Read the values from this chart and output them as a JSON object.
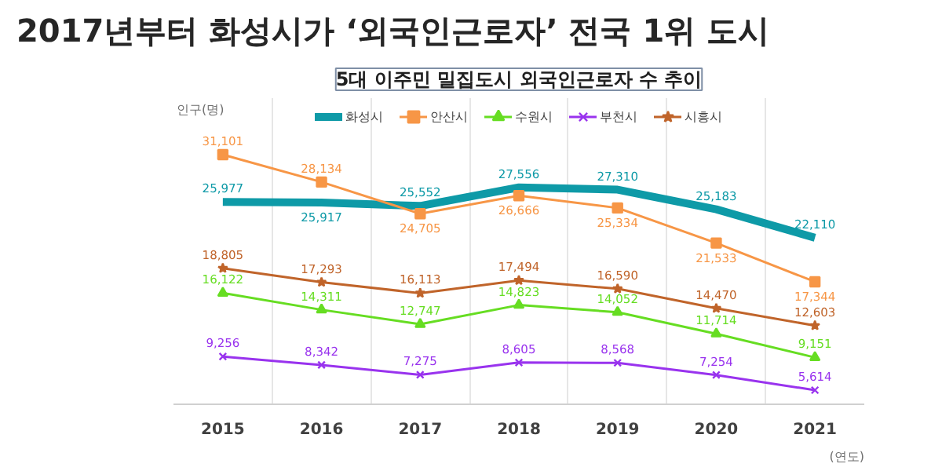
{
  "chart_data": {
    "type": "line",
    "title": "2017년부터 화성시가 ‘외국인근로자’ 전국 1위 도시",
    "subtitle": "5대 이주민 밀집도시 외국인근로자 수 추이",
    "ylabel": "인구(명)",
    "xlabel": "(연도)",
    "categories": [
      "2015",
      "2016",
      "2017",
      "2018",
      "2019",
      "2020",
      "2021"
    ],
    "series": [
      {
        "name": "화성시",
        "color": "#0e9aa7",
        "marker": "none",
        "values": [
          25977,
          25917,
          25552,
          27556,
          27310,
          25183,
          22110
        ],
        "value_labels": [
          "25,977",
          "25,917",
          "25,552",
          "27,556",
          "27,310",
          "25,183",
          "22,110"
        ]
      },
      {
        "name": "안산시",
        "color": "#f79646",
        "marker": "square",
        "values": [
          31101,
          28134,
          24705,
          26666,
          25334,
          21533,
          17344
        ],
        "value_labels": [
          "31,101",
          "28,134",
          "24,705",
          "26,666",
          "25,334",
          "21,533",
          "17,344"
        ]
      },
      {
        "name": "수원시",
        "color": "#66dd22",
        "marker": "triangle",
        "values": [
          16122,
          14311,
          12747,
          14823,
          14052,
          11714,
          9151
        ],
        "value_labels": [
          "16,122",
          "14,311",
          "12,747",
          "14,823",
          "14,052",
          "11,714",
          "9,151"
        ]
      },
      {
        "name": "부천시",
        "color": "#9933ee",
        "marker": "cross",
        "values": [
          9256,
          8342,
          7275,
          8605,
          8568,
          7254,
          5614
        ],
        "value_labels": [
          "9,256",
          "8,342",
          "7,275",
          "8,605",
          "8,568",
          "7,254",
          "5,614"
        ]
      },
      {
        "name": "시흥시",
        "color": "#c0642a",
        "marker": "star",
        "values": [
          18805,
          17293,
          16113,
          17494,
          16590,
          14470,
          12603
        ],
        "value_labels": [
          "18,805",
          "17,293",
          "16,113",
          "17,494",
          "16,590",
          "14,470",
          "12,603"
        ]
      }
    ],
    "grid": "x",
    "legend": "top"
  }
}
